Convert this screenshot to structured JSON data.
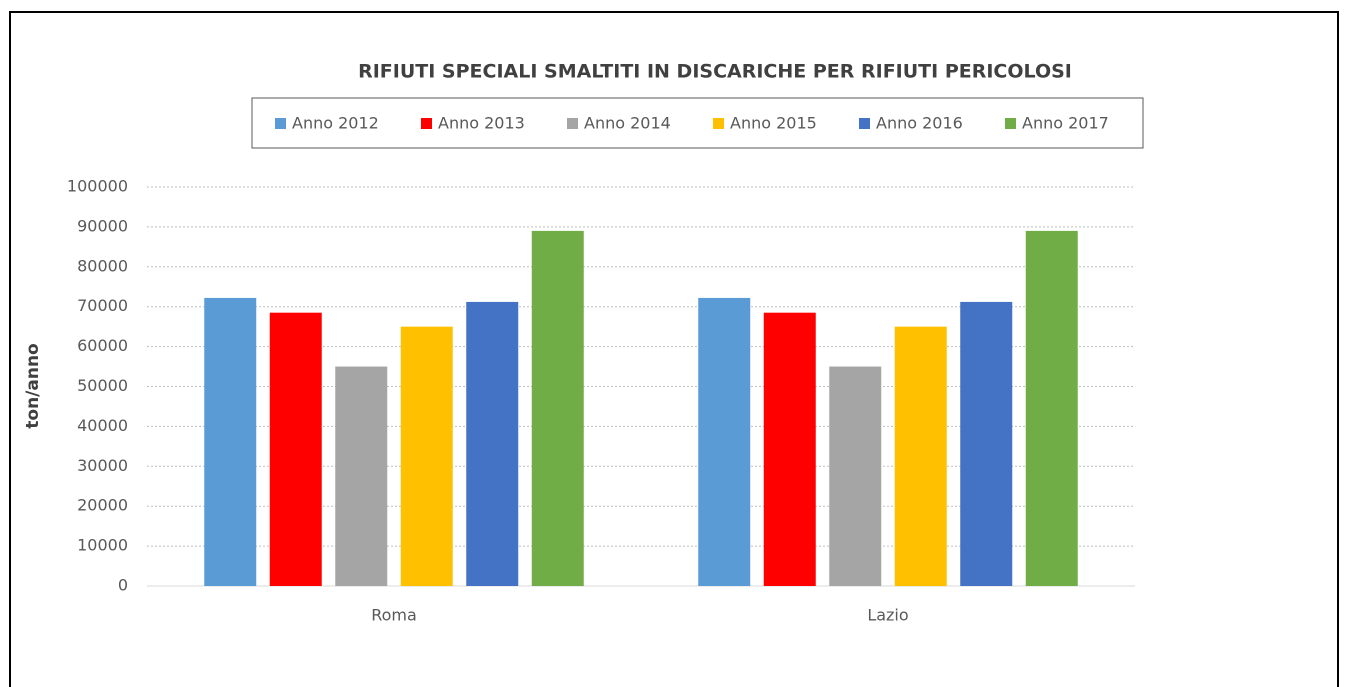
{
  "chart_data": {
    "type": "bar",
    "title": "RIFIUTI SPECIALI SMALTITI IN DISCARICHE PER RIFIUTI  PERICOLOSI",
    "y_label": "ton/anno",
    "categories": [
      "Roma",
      "Lazio"
    ],
    "series": [
      {
        "name": "Anno 2012",
        "color": "#5b9bd5",
        "values": [
          72200,
          72200
        ]
      },
      {
        "name": "Anno 2013",
        "color": "#ff0000",
        "values": [
          68500,
          68500
        ]
      },
      {
        "name": "Anno 2014",
        "color": "#a5a5a5",
        "values": [
          55000,
          55000
        ]
      },
      {
        "name": "Anno 2015",
        "color": "#ffc000",
        "values": [
          65000,
          65000
        ]
      },
      {
        "name": "Anno 2016",
        "color": "#4472c4",
        "values": [
          71200,
          71200
        ]
      },
      {
        "name": "Anno 2017",
        "color": "#70ad47",
        "values": [
          89000,
          89000
        ]
      }
    ],
    "ylim": [
      0,
      100000
    ],
    "yticks": [
      0,
      10000,
      20000,
      30000,
      40000,
      50000,
      60000,
      70000,
      80000,
      90000,
      100000
    ],
    "grid": true,
    "legend": "top"
  }
}
